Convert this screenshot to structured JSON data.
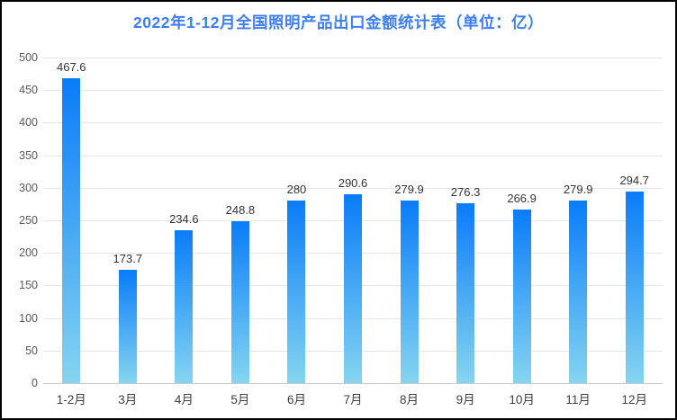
{
  "chart_data": {
    "type": "bar",
    "title": "2022年1-12月全国照明产品出口金额统计表（单位：亿）",
    "unit": "亿",
    "categories": [
      "1-2月",
      "3月",
      "4月",
      "5月",
      "6月",
      "7月",
      "8月",
      "9月",
      "10月",
      "11月",
      "12月"
    ],
    "values": [
      467.6,
      173.7,
      234.6,
      248.8,
      280,
      290.6,
      279.9,
      276.3,
      266.9,
      279.9,
      294.7
    ],
    "value_labels": [
      "467.6",
      "173.7",
      "234.6",
      "248.8",
      "280",
      "290.6",
      "279.9",
      "276.3",
      "266.9",
      "279.9",
      "294.7"
    ],
    "xlabel": "",
    "ylabel": "",
    "ylim": [
      0,
      500
    ],
    "yticks": [
      0,
      50,
      100,
      150,
      200,
      250,
      300,
      350,
      400,
      450,
      500
    ],
    "grid": true,
    "legend_position": "none",
    "colors": {
      "title": "#3c7ef3",
      "bar_gradient_top": "#0a7cf8",
      "bar_gradient_bottom": "#85d5f0",
      "gridline": "#e6e6e6",
      "axis_baseline": "#c9c9c9",
      "tick_label": "#595959",
      "value_label": "#333333",
      "x_label": "#3e3e3e",
      "background": "#ffffff",
      "border": "#000000"
    }
  }
}
